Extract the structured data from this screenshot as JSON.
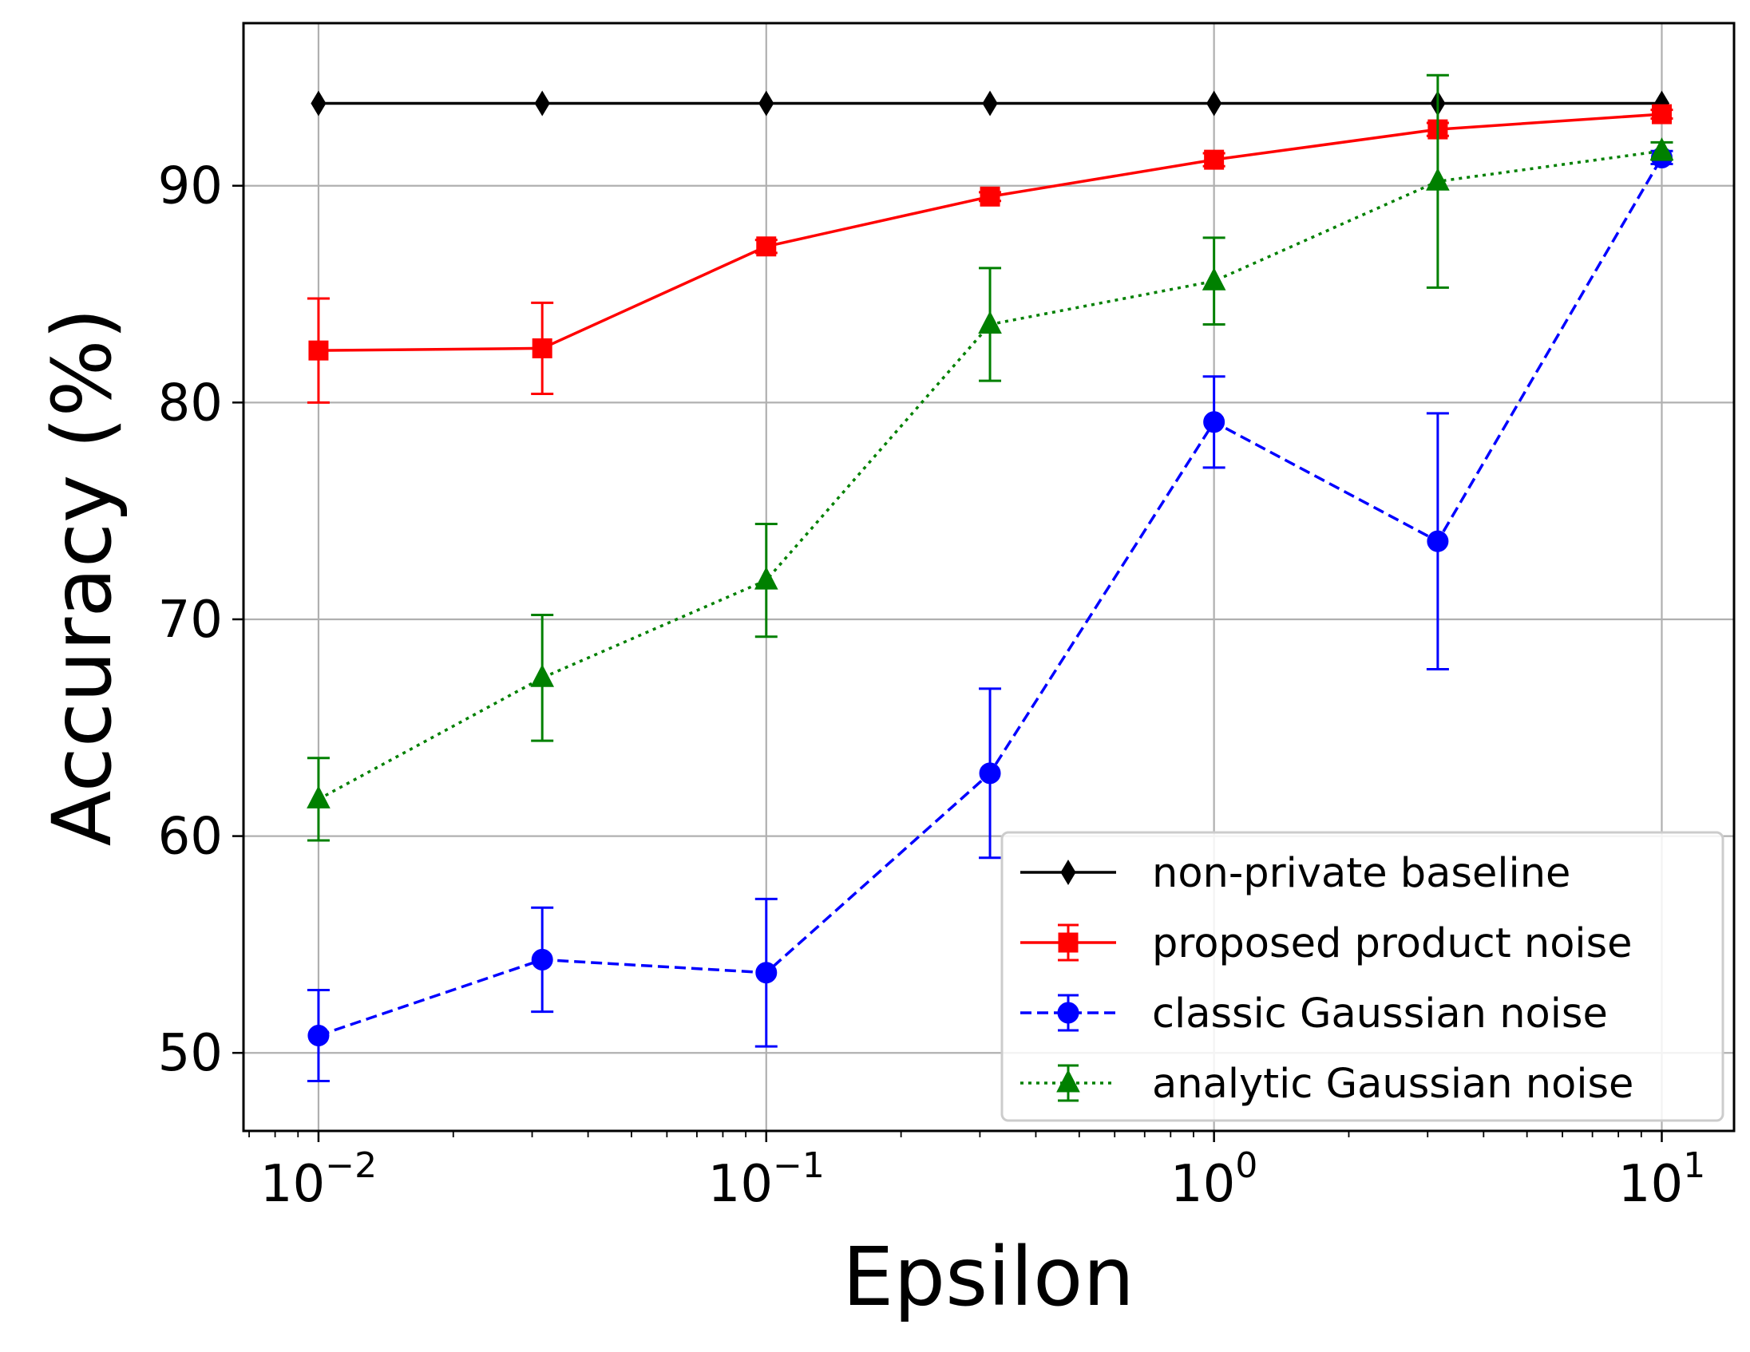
{
  "chart_data": {
    "type": "line",
    "title": "",
    "xlabel": "Epsilon",
    "ylabel": "Accuracy (%)",
    "xscale": "log",
    "xlim": [
      0.0068,
      14.5
    ],
    "ylim": [
      46.4,
      97.5
    ],
    "grid": true,
    "legend_position": "lower-right",
    "x": [
      0.01,
      0.0316,
      0.1,
      0.316,
      1,
      3.16,
      10
    ],
    "x_ticks": [
      {
        "value": 0.01,
        "base": "10",
        "exp": "−2"
      },
      {
        "value": 0.1,
        "base": "10",
        "exp": "−1"
      },
      {
        "value": 1,
        "base": "10",
        "exp": "0"
      },
      {
        "value": 10,
        "base": "10",
        "exp": "1"
      }
    ],
    "y_ticks": [
      50,
      60,
      70,
      80,
      90
    ],
    "series": [
      {
        "name": "non-private baseline",
        "color": "#000000",
        "marker": "diamond",
        "linestyle": "solid",
        "values": [
          93.8,
          93.8,
          93.8,
          93.8,
          93.8,
          93.8,
          93.8
        ],
        "errors": null
      },
      {
        "name": "proposed product noise",
        "color": "#ff0000",
        "marker": "square",
        "linestyle": "solid",
        "values": [
          82.4,
          82.5,
          87.2,
          89.5,
          91.2,
          92.6,
          93.3
        ],
        "errors": [
          2.4,
          2.1,
          0.3,
          0.2,
          0.3,
          0.3,
          0.2
        ]
      },
      {
        "name": "classic Gaussian noise",
        "color": "#0000ff",
        "marker": "circle",
        "linestyle": "dashed",
        "values": [
          50.8,
          54.3,
          53.7,
          62.9,
          79.1,
          73.6,
          91.3
        ],
        "errors": [
          2.1,
          2.4,
          3.4,
          3.9,
          2.1,
          5.9,
          0.3
        ]
      },
      {
        "name": "analytic Gaussian noise",
        "color": "#008000",
        "marker": "triangle",
        "linestyle": "dotted",
        "values": [
          61.7,
          67.3,
          71.8,
          83.6,
          85.6,
          90.2,
          91.6
        ],
        "errors": [
          1.9,
          2.9,
          2.6,
          2.6,
          2.0,
          4.9,
          0.4
        ]
      }
    ]
  }
}
